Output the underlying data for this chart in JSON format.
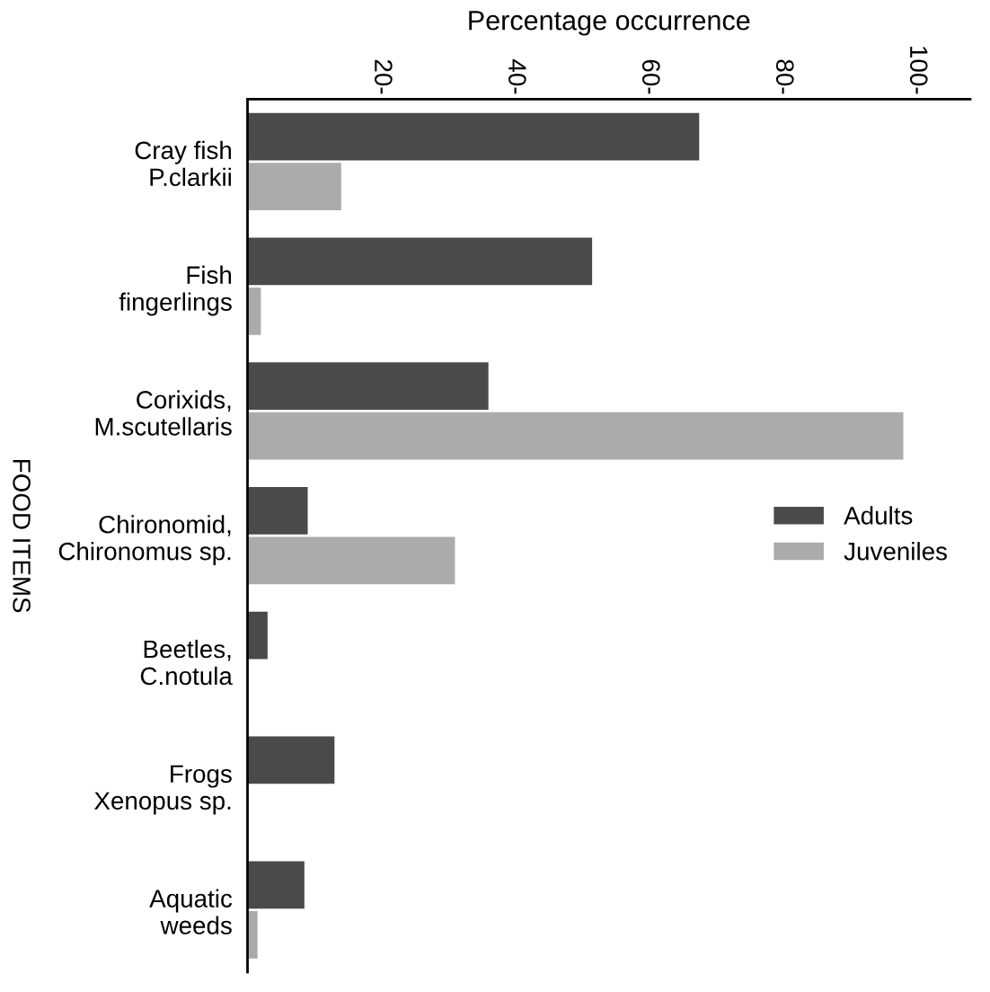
{
  "chart_data": {
    "type": "bar",
    "orientation": "horizontal",
    "xlabel": "Percentage occurrence",
    "ylabel": "FOOD ITEMS",
    "categories": [
      "Cray fish\nP.clarkii",
      "Fish\nfingerlings",
      "Corixids,\nM.scutellaris",
      "Chironomid,\nChironomus sp.",
      "Beetles,\nC.notula",
      "Frogs\nXenopus sp.",
      "Aquatic\nweeds"
    ],
    "series": [
      {
        "name": "Adults",
        "color": "#4a4a4a",
        "values": [
          67.5,
          51.5,
          36,
          9,
          3,
          13,
          8.5
        ]
      },
      {
        "name": "Juveniles",
        "color": "#ababab",
        "values": [
          14,
          2,
          98,
          31,
          null,
          null,
          1.5
        ]
      }
    ],
    "xlim": [
      0,
      108
    ],
    "xticks": [
      {
        "value": 20,
        "label": "20-"
      },
      {
        "value": 40,
        "label": "40-"
      },
      {
        "value": 60,
        "label": "60-"
      },
      {
        "value": 80,
        "label": "80-"
      },
      {
        "value": 100,
        "label": "100-"
      }
    ],
    "grid": false,
    "legend": "center right"
  }
}
